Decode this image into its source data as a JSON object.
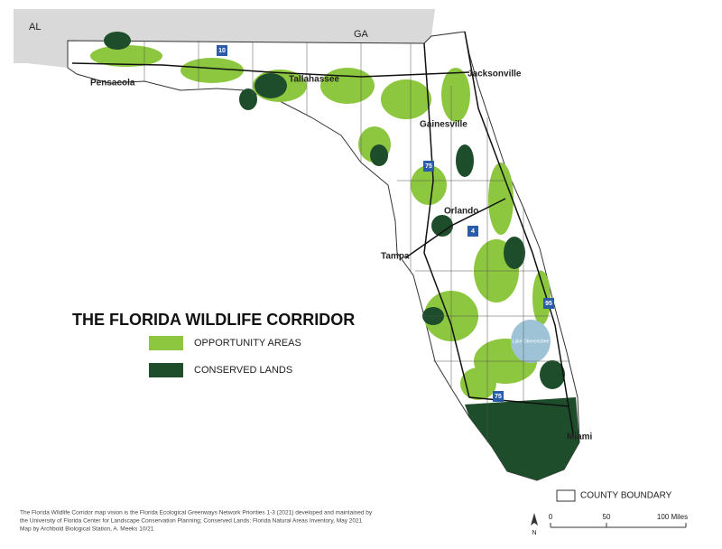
{
  "neighbors": [
    "AL",
    "GA"
  ],
  "cities": [
    "Pensacola",
    "Tallahassee",
    "Jacksonville",
    "Gainesville",
    "Orlando",
    "Tampa",
    "Miami"
  ],
  "lake": "Lake Okeechobee",
  "interstates": [
    "10",
    "75",
    "4",
    "95",
    "75"
  ],
  "legend": {
    "title": "THE FLORIDA WILDLIFE CORRIDOR",
    "items": [
      "OPPORTUNITY AREAS",
      "CONSERVED LANDS"
    ],
    "boundary": "COUNTY BOUNDARY"
  },
  "scale": {
    "labels": [
      "0",
      "50",
      "100 Miles"
    ],
    "north": "N"
  },
  "credits": [
    "The Florida Wildlife Corridor map vision is the Florida Ecological Greenways Network Priorities 1-3 (2021) developed and maintained by",
    "the University of Florida Center for Landscape Conservation Planning; Conserved Lands: Florida Natural Areas Inventory, May 2021",
    "Map by Archbold Biological Station, A. Meeks 10/21"
  ]
}
